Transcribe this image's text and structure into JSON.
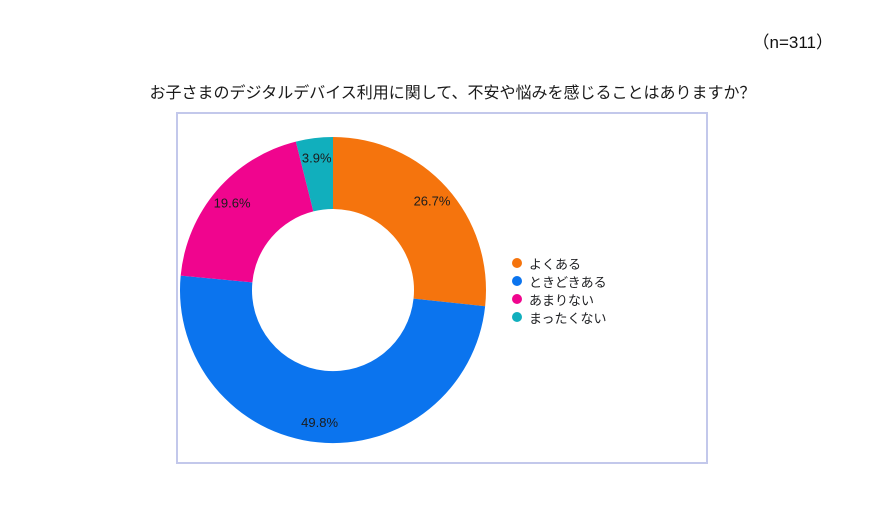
{
  "chart_data": {
    "type": "pie",
    "donut": true,
    "inner_radius_ratio": 0.53,
    "title": "お子さまのデジタルデバイス利用に関して、不安や悩みを感じることはありますか？",
    "sample_size_label": "（n=311）",
    "categories": [
      "よくある",
      "ときどきある",
      "あまりない",
      "まったくない"
    ],
    "values": [
      26.7,
      49.8,
      19.6,
      3.9
    ],
    "value_labels": [
      "26.7%",
      "49.8%",
      "19.6%",
      "3.9%"
    ],
    "colors": [
      "#F5740D",
      "#0B74EE",
      "#F0058E",
      "#11AFBD"
    ],
    "start_angle_deg": 0,
    "direction": "clockwise",
    "legend_position": "right",
    "label_color": "#1c1c1c",
    "frame_border_color": "#c3c8eb"
  }
}
